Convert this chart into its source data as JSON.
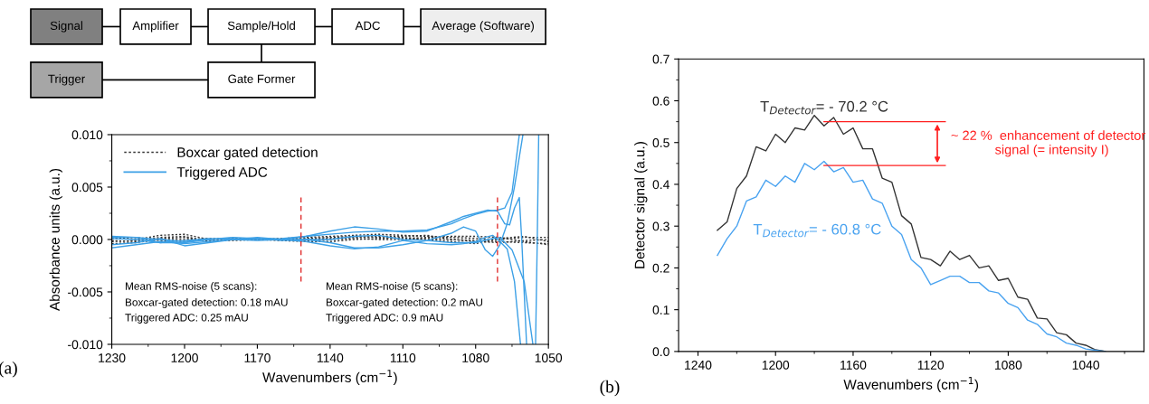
{
  "chart_data": [
    {
      "type": "other",
      "categories": [
        "Signal",
        "Amplifier",
        "Sample/Hold",
        "ADC",
        "Average (Software)",
        "Trigger",
        "Gate Former"
      ],
      "colors": [
        "#808080",
        "#ffffff",
        "#ffffff",
        "#ffffff",
        "#eeeeee",
        "#a6a6a6",
        "#ffffff"
      ]
    },
    {
      "type": "line",
      "xlabel": "Wavenumbers (cm$^{−1}$)",
      "ylabel": "Absorbance units (a.u.)",
      "xlim": [
        1230,
        1050
      ],
      "xticks": [
        1230,
        1200,
        1170,
        1140,
        1110,
        1080,
        1050
      ],
      "ylim": [
        -0.01,
        0.01
      ],
      "yticks": [
        {
          "value": -0.01,
          "label": "-0.010"
        },
        {
          "value": -0.005,
          "label": "-0.005"
        },
        {
          "value": 0,
          "label": "0.000"
        },
        {
          "value": 0.005,
          "label": "0.005"
        },
        {
          "value": 0.01,
          "label": "0.010"
        }
      ],
      "legend": "top left",
      "grid": false,
      "ref_lines": [
        {
          "axis": "x",
          "value": 1152,
          "color": "#e03030",
          "line_style": "dashed"
        },
        {
          "axis": "x",
          "value": 1071,
          "color": "#e03030",
          "line_style": "dashed"
        }
      ],
      "annotations": [
        "Mean RMS-noise (5 scans):",
        "Boxcar-gated detection: 0.18 mAU",
        "Triggered ADC: 0.25 mAU",
        "Mean RMS-noise (5 scans):",
        "Boxcar-gated detection: 0.2 mAU",
        "Triggered ADC: 0.9 mAU",
        "(a)"
      ],
      "series": [
        {
          "name": "Boxcar gated detection",
          "color": "#333333",
          "line_style": "dotted",
          "x": [
            1230,
            1220,
            1210,
            1200,
            1190,
            1180,
            1170,
            1160,
            1150,
            1140,
            1130,
            1120,
            1110,
            1100,
            1090,
            1080,
            1070,
            1060,
            1050
          ],
          "values": [
            0.0002,
            0.0,
            0.0004,
            0.0005,
            0.0,
            0.0001,
            0.0,
            0.0001,
            0.0002,
            0.0003,
            0.0004,
            0.0005,
            0.0004,
            0.0003,
            0.0002,
            0.0001,
            0.0,
            0.0002,
            0.0002
          ]
        },
        {
          "color": "#333333",
          "line_style": "dotted",
          "x": [
            1230,
            1220,
            1210,
            1200,
            1190,
            1180,
            1170,
            1160,
            1150,
            1140,
            1130,
            1120,
            1110,
            1100,
            1090,
            1080,
            1070,
            1060,
            1050
          ],
          "values": [
            -0.0002,
            -0.0001,
            0.0002,
            0.0003,
            -0.0002,
            0.0,
            0.0,
            0.0,
            0.0,
            0.0001,
            0.0002,
            0.0003,
            0.0003,
            0.0004,
            0.0,
            -0.0001,
            -0.0002,
            -0.0003,
            -0.0004
          ]
        },
        {
          "color": "#333333",
          "line_style": "dotted",
          "x": [
            1230,
            1220,
            1210,
            1200,
            1190,
            1180,
            1170,
            1160,
            1150,
            1140,
            1130,
            1120,
            1110,
            1100,
            1090,
            1080,
            1070,
            1060,
            1050
          ],
          "values": [
            -0.0004,
            -0.0003,
            0.0,
            0.0,
            0.0001,
            0.0,
            0.0,
            -0.0001,
            -0.0002,
            -0.0002,
            0.0,
            0.0001,
            0.0002,
            0.0,
            -0.0002,
            -0.0004,
            0.0001,
            0.0003,
            -0.0002
          ]
        },
        {
          "color": "#333333",
          "line_style": "dotted",
          "x": [
            1230,
            1220,
            1210,
            1200,
            1190,
            1180,
            1170,
            1160,
            1150,
            1140,
            1130,
            1120,
            1110,
            1100,
            1090,
            1080,
            1070,
            1060,
            1050
          ],
          "values": [
            0.0001,
            0.0002,
            -0.0001,
            -0.0002,
            0.0,
            0.0001,
            0.0001,
            0.0,
            0.0001,
            0.0002,
            0.0003,
            0.0002,
            0.0001,
            0.0002,
            0.0003,
            0.0003,
            0.0002,
            -0.0002,
            -0.0005
          ]
        },
        {
          "color": "#333333",
          "line_style": "dotted",
          "x": [
            1230,
            1220,
            1210,
            1200,
            1190,
            1180,
            1170,
            1160,
            1150,
            1140,
            1130,
            1120,
            1110,
            1100,
            1090,
            1080,
            1070,
            1060,
            1050
          ],
          "values": [
            -0.0001,
            -0.0002,
            0.0001,
            0.0002,
            -0.0001,
            -0.0001,
            0.0,
            0.0,
            -0.0001,
            0.0,
            0.0001,
            0.0,
            0.0,
            0.0001,
            0.0,
            -0.0002,
            -0.0003,
            -0.0001,
            0.0
          ]
        },
        {
          "name": "Triggered ADC",
          "color": "#3ca0e6",
          "line_style": "solid",
          "x": [
            1230,
            1220,
            1210,
            1200,
            1190,
            1180,
            1170,
            1160,
            1150,
            1140,
            1130,
            1120,
            1110,
            1100,
            1090,
            1085,
            1080,
            1075,
            1071,
            1068,
            1065,
            1062
          ],
          "values": [
            0.0003,
            0.0002,
            0.0,
            -0.0002,
            0.0,
            0.0001,
            0.0,
            0.0001,
            0.0003,
            0.0005,
            0.0007,
            0.0008,
            0.0008,
            0.0009,
            0.0015,
            0.002,
            0.0024,
            0.0027,
            0.0028,
            0.003,
            0.0045,
            0.01
          ]
        },
        {
          "color": "#3ca0e6",
          "line_style": "solid",
          "x": [
            1230,
            1220,
            1210,
            1200,
            1190,
            1180,
            1170,
            1160,
            1150,
            1140,
            1130,
            1120,
            1110,
            1100,
            1090,
            1085,
            1080,
            1075,
            1071,
            1068,
            1066,
            1064,
            1062,
            1061,
            1059
          ],
          "values": [
            0.0001,
            0.0,
            -0.0003,
            -0.0001,
            0.0001,
            0.0,
            -0.0001,
            0.0,
            0.0003,
            0.0008,
            0.0012,
            0.001,
            0.0007,
            0.0008,
            0.0017,
            0.0022,
            0.0025,
            0.0028,
            0.0027,
            0.0015,
            0.0014,
            0.003,
            0.004,
            0.0,
            -0.01
          ]
        },
        {
          "color": "#3ca0e6",
          "line_style": "solid",
          "x": [
            1230,
            1220,
            1210,
            1200,
            1190,
            1180,
            1170,
            1160,
            1150,
            1140,
            1130,
            1120,
            1110,
            1100,
            1090,
            1085,
            1080,
            1076,
            1073,
            1070,
            1067,
            1064,
            1060.5
          ],
          "values": [
            -0.0008,
            -0.0005,
            -0.0002,
            -0.0004,
            -0.0002,
            0.0,
            0.0001,
            0.0,
            0.0,
            -0.0003,
            -0.0008,
            -0.0008,
            -0.0005,
            -0.0001,
            0.0006,
            0.0012,
            0.0008,
            -0.001,
            -0.0016,
            -0.0005,
            0.0015,
            0.005,
            0.01
          ]
        },
        {
          "color": "#3ca0e6",
          "line_style": "solid",
          "x": [
            1230,
            1220,
            1210,
            1200,
            1190,
            1180,
            1170,
            1160,
            1150,
            1140,
            1130,
            1120,
            1110,
            1100,
            1090,
            1085,
            1080,
            1076,
            1073,
            1070,
            1067,
            1064,
            1061.5
          ],
          "values": [
            -0.0005,
            -0.0003,
            0.0001,
            -0.0006,
            -0.0003,
            0.0,
            0.0002,
            0.0,
            -0.0002,
            -0.0006,
            -0.0009,
            -0.0007,
            -0.0001,
            -0.0004,
            -0.0005,
            -0.0004,
            -0.0002,
            0.0002,
            0.0004,
            -0.0002,
            -0.0009,
            -0.004,
            -0.01
          ]
        },
        {
          "color": "#3ca0e6",
          "line_style": "solid",
          "x": [
            1230,
            1220,
            1210,
            1200,
            1190,
            1180,
            1170,
            1160,
            1150,
            1140,
            1130,
            1120,
            1110,
            1100,
            1090,
            1080,
            1075,
            1070,
            1065,
            1060,
            1057,
            1056.4,
            1055.8,
            1055.3,
            1054.6,
            1054
          ],
          "values": [
            0.0002,
            0.0002,
            -0.0003,
            -0.0003,
            0.0,
            0.0002,
            0.0001,
            -0.0001,
            0.0,
            0.0,
            0.0003,
            0.0004,
            0.0,
            -0.0001,
            -0.0003,
            -0.0003,
            0.0,
            0.0002,
            -0.001,
            -0.004,
            -0.009,
            -0.01,
            null,
            -0.01,
            0.0,
            0.01
          ]
        }
      ]
    },
    {
      "type": "line",
      "xlabel": "Wavenumbers (cm$^{−1}$)",
      "ylabel": "Detector signal (a.u.)",
      "xlim": [
        1250,
        1010
      ],
      "xticks": [
        1240,
        1200,
        1160,
        1120,
        1080,
        1040
      ],
      "ylim": [
        0,
        0.7
      ],
      "yticks": [
        {
          "value": 0,
          "label": "0.0"
        },
        0.1,
        0.2,
        0.3,
        0.4,
        0.5,
        0.6,
        0.7
      ],
      "grid": false,
      "ref_lines": [
        {
          "axis": "y",
          "value": 0.55,
          "color": "#ff2020"
        },
        {
          "axis": "y",
          "value": 0.445,
          "color": "#ff2020"
        }
      ],
      "annotations": [
        "~ 22 %  enhancement of detector\n            signal (= intensity I)",
        "(b)"
      ],
      "series": [
        {
          "name": "T$_{Detector}$= - 70.2 °C",
          "color": "#333333",
          "x": [
            1230,
            1225,
            1220,
            1215,
            1210,
            1205,
            1200,
            1195,
            1190,
            1185,
            1180,
            1175,
            1170,
            1165,
            1160,
            1155,
            1150,
            1145,
            1140,
            1135,
            1130,
            1125,
            1120,
            1115,
            1110,
            1105,
            1100,
            1095,
            1090,
            1085,
            1080,
            1075,
            1070,
            1065,
            1060,
            1055,
            1050,
            1045,
            1040,
            1035,
            1030
          ],
          "values": [
            0.29,
            0.31,
            0.39,
            0.42,
            0.49,
            0.48,
            0.52,
            0.5,
            0.535,
            0.53,
            0.565,
            0.54,
            0.56,
            0.52,
            0.535,
            0.485,
            0.485,
            0.415,
            0.405,
            0.325,
            0.305,
            0.225,
            0.22,
            0.205,
            0.24,
            0.22,
            0.23,
            0.2,
            0.205,
            0.17,
            0.175,
            0.13,
            0.125,
            0.08,
            0.078,
            0.045,
            0.04,
            0.02,
            0.015,
            0.004,
            0.0
          ]
        },
        {
          "name": "T$_{Detector}$= - 60.8 °C",
          "color": "#4aa3f0",
          "x": [
            1230,
            1225,
            1220,
            1215,
            1210,
            1205,
            1200,
            1195,
            1190,
            1185,
            1180,
            1175,
            1170,
            1165,
            1160,
            1155,
            1150,
            1145,
            1140,
            1135,
            1130,
            1125,
            1120,
            1115,
            1110,
            1105,
            1100,
            1095,
            1090,
            1085,
            1080,
            1075,
            1070,
            1065,
            1060,
            1055,
            1050,
            1045,
            1040,
            1035,
            1030
          ],
          "values": [
            0.23,
            0.27,
            0.3,
            0.36,
            0.37,
            0.41,
            0.395,
            0.42,
            0.405,
            0.45,
            0.435,
            0.455,
            0.43,
            0.44,
            0.405,
            0.41,
            0.365,
            0.355,
            0.3,
            0.28,
            0.22,
            0.2,
            0.16,
            0.17,
            0.18,
            0.18,
            0.165,
            0.165,
            0.145,
            0.14,
            0.115,
            0.105,
            0.075,
            0.065,
            0.042,
            0.035,
            0.02,
            0.015,
            0.006,
            0.003,
            0.0
          ]
        }
      ]
    }
  ]
}
